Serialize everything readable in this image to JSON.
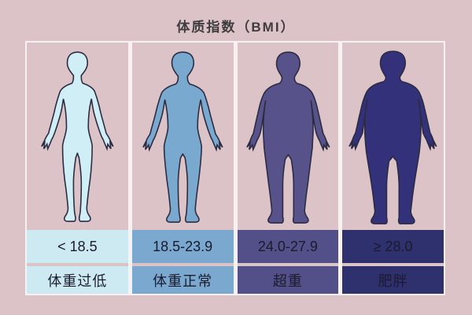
{
  "title": "体质指数（BMI）",
  "categories": [
    {
      "id": "underweight",
      "range": "< 18.5",
      "label": "体重过低",
      "cell_color": "#cdeaf2",
      "body_color": "#cfeef6"
    },
    {
      "id": "normal",
      "range": "18.5-23.9",
      "label": "体重正常",
      "cell_color": "#7aa8ce",
      "body_color": "#7aa9cf"
    },
    {
      "id": "overweight",
      "range": "24.0-27.9",
      "label": "超重",
      "cell_color": "#534f88",
      "body_color": "#575289"
    },
    {
      "id": "obese",
      "range": "≥ 28.0",
      "label": "肥胖",
      "cell_color": "#2f306e",
      "body_color": "#333179"
    }
  ],
  "colors": {
    "background": "#dcc3c7",
    "frame": "#f8f1f1",
    "outline": "#2b2b42",
    "cell_text": "#1a1b2d",
    "title_text": "#3e3c3d"
  }
}
